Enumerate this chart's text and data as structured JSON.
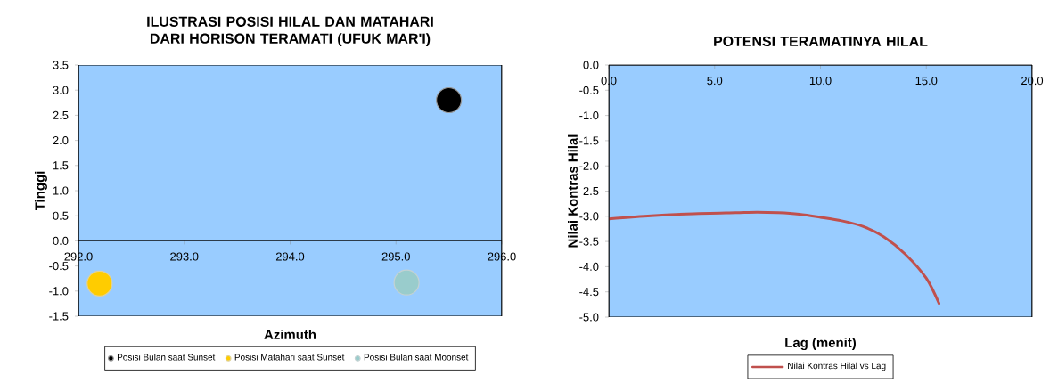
{
  "chart_data": [
    {
      "type": "scatter",
      "title": "ILUSTRASI POSISI HILAL DAN MATAHARI DARI HORISON TERAMATI (UFUK MAR'I)",
      "xlabel": "Azimuth",
      "ylabel": "Tinggi",
      "xlim": [
        292,
        296
      ],
      "ylim": [
        -1.5,
        3.5
      ],
      "xticks": [
        {
          "value": 292,
          "label": "292.0"
        },
        {
          "value": 293,
          "label": "293.0"
        },
        {
          "value": 294,
          "label": "294.0"
        },
        {
          "value": 295,
          "label": "295.0"
        },
        {
          "value": 296,
          "label": "296.0"
        }
      ],
      "yticks": [
        {
          "value": -1.5,
          "label": "-1.5"
        },
        {
          "value": -1,
          "label": "-1.0"
        },
        {
          "value": -0.5,
          "label": "-0.5"
        },
        {
          "value": 0,
          "label": "0.0"
        },
        {
          "value": 0.5,
          "label": "0.5"
        },
        {
          "value": 1,
          "label": "1.0"
        },
        {
          "value": 1.5,
          "label": "1.5"
        },
        {
          "value": 2,
          "label": "2.0"
        },
        {
          "value": 2.5,
          "label": "2.5"
        },
        {
          "value": 3,
          "label": "3.0"
        },
        {
          "value": 3.5,
          "label": "3.5"
        }
      ],
      "marker": "circle",
      "legend": "bottom",
      "grid": false,
      "series": [
        {
          "name": "Posisi Bulan saat Sunset",
          "color": "#000000",
          "x": [
            295.5
          ],
          "values": [
            2.8
          ]
        },
        {
          "name": "Posisi Matahari saat Sunset",
          "color": "#ffcc00",
          "x": [
            292.2
          ],
          "values": [
            -0.85
          ]
        },
        {
          "name": "Posisi Bulan saat Moonset",
          "color": "#99cccc",
          "x": [
            295.1
          ],
          "values": [
            -0.83
          ]
        }
      ]
    },
    {
      "type": "line",
      "title": "POTENSI TERAMATINYA HILAL",
      "xlabel": "Lag (menit)",
      "ylabel": "Nilai Kontras Hilal",
      "xlim": [
        0,
        20
      ],
      "ylim": [
        -5,
        0
      ],
      "xticks": [
        {
          "value": 0,
          "label": "0.0"
        },
        {
          "value": 5,
          "label": "5.0"
        },
        {
          "value": 10,
          "label": "10.0"
        },
        {
          "value": 15,
          "label": "15.0"
        },
        {
          "value": 20,
          "label": "20.0"
        }
      ],
      "yticks": [
        {
          "value": -5,
          "label": "-5.0"
        },
        {
          "value": -4.5,
          "label": "-4.5"
        },
        {
          "value": -4,
          "label": "-4.0"
        },
        {
          "value": -3.5,
          "label": "-3.5"
        },
        {
          "value": -3,
          "label": "-3.0"
        },
        {
          "value": -2.5,
          "label": "-2.5"
        },
        {
          "value": -2,
          "label": "-2.0"
        },
        {
          "value": -1.5,
          "label": "-1.5"
        },
        {
          "value": -1,
          "label": "-1.0"
        },
        {
          "value": -0.5,
          "label": "-0.5"
        },
        {
          "value": 0,
          "label": "0.0"
        }
      ],
      "marker": "none",
      "line_style": "solid",
      "legend": "bottom",
      "grid": false,
      "series": [
        {
          "name": "Nilai Kontras Hilal vs Lag",
          "color": "#c0504d",
          "x": [
            0,
            2,
            4,
            6,
            7,
            8,
            9,
            10,
            11,
            12,
            13,
            14,
            15,
            15.6
          ],
          "values": [
            -3.05,
            -2.99,
            -2.95,
            -2.93,
            -2.92,
            -2.93,
            -2.96,
            -3.02,
            -3.09,
            -3.2,
            -3.41,
            -3.75,
            -4.23,
            -4.73
          ]
        }
      ]
    }
  ]
}
